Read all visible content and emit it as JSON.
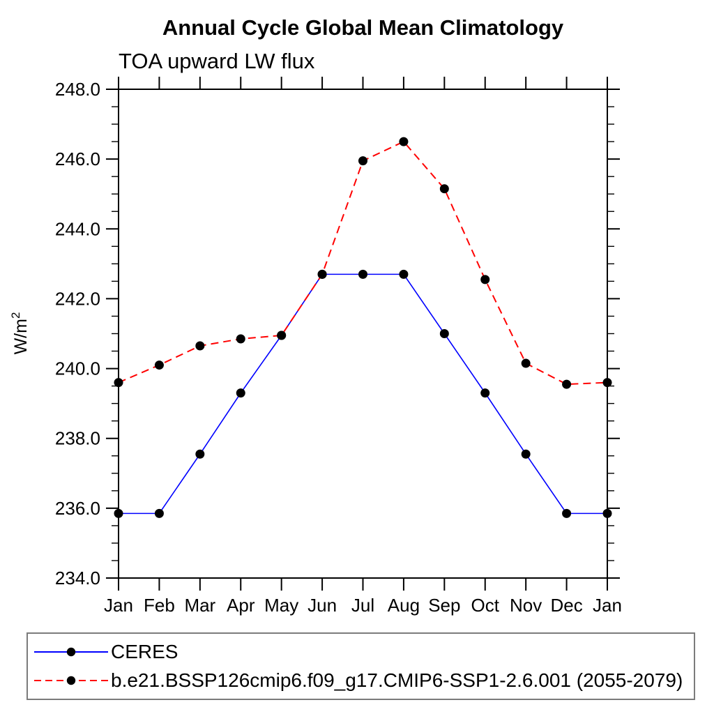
{
  "chart": {
    "title": "Annual Cycle Global Mean Climatology",
    "subtitle": "TOA upward LW flux"
  },
  "chart_data": {
    "type": "line",
    "title": "Annual Cycle Global Mean Climatology",
    "subtitle": "TOA upward LW flux",
    "ylabel": "W/m²",
    "xlabel": "",
    "x": [
      "Jan",
      "Feb",
      "Mar",
      "Apr",
      "May",
      "Jun",
      "Jul",
      "Aug",
      "Sep",
      "Oct",
      "Nov",
      "Dec",
      "Jan"
    ],
    "ylim": [
      234.0,
      248.0
    ],
    "y_major_step": 2.0,
    "y_minor_step": 0.5,
    "y_tick_format_decimals": 1,
    "grid": false,
    "legend_position": "bottom-left-box",
    "frame_color": "#000000",
    "series": [
      {
        "name": "CERES",
        "color": "#0000ff",
        "line_style": "solid",
        "marker": "filled-circle",
        "marker_color": "#000000",
        "values": [
          235.85,
          235.85,
          237.55,
          239.3,
          240.95,
          242.7,
          242.7,
          242.7,
          241.0,
          239.3,
          237.55,
          235.85,
          235.85
        ]
      },
      {
        "name": "b.e21.BSSP126cmip6.f09_g17.CMIP6-SSP1-2.6.001 (2055-2079)",
        "color": "#ff0000",
        "line_style": "dashed",
        "marker": "filled-circle",
        "marker_color": "#000000",
        "values": [
          239.6,
          240.1,
          240.65,
          240.85,
          240.95,
          242.7,
          245.95,
          246.5,
          245.15,
          242.55,
          240.15,
          239.55,
          239.6
        ]
      }
    ]
  }
}
